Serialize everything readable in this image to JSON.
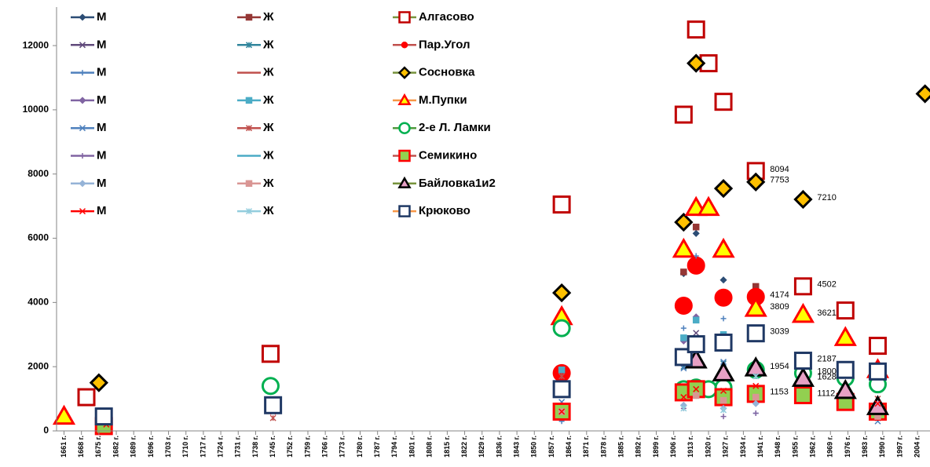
{
  "chart_data": {
    "type": "scatter",
    "xlim": [
      1658,
      2009
    ],
    "xticks": [
      {
        "value": 1661,
        "label": "1661 г."
      },
      {
        "value": 1668,
        "label": "1668 г."
      },
      {
        "value": 1675,
        "label": "1675 г."
      },
      {
        "value": 1682,
        "label": "1682 г."
      },
      {
        "value": 1689,
        "label": "1689 г."
      },
      {
        "value": 1696,
        "label": "1696 г."
      },
      {
        "value": 1703,
        "label": "1703 г."
      },
      {
        "value": 1710,
        "label": "1710 г."
      },
      {
        "value": 1717,
        "label": "1717 г."
      },
      {
        "value": 1724,
        "label": "1724 г."
      },
      {
        "value": 1731,
        "label": "1731 г."
      },
      {
        "value": 1738,
        "label": "1738 г."
      },
      {
        "value": 1745,
        "label": "1745 г."
      },
      {
        "value": 1752,
        "label": "1752 г."
      },
      {
        "value": 1759,
        "label": "1759 г."
      },
      {
        "value": 1766,
        "label": "1766 г."
      },
      {
        "value": 1773,
        "label": "1773 г."
      },
      {
        "value": 1780,
        "label": "1780 г."
      },
      {
        "value": 1787,
        "label": "1787 г."
      },
      {
        "value": 1794,
        "label": "1794 г."
      },
      {
        "value": 1801,
        "label": "1801 г."
      },
      {
        "value": 1808,
        "label": "1808 г."
      },
      {
        "value": 1815,
        "label": "1815 г."
      },
      {
        "value": 1822,
        "label": "1822 г."
      },
      {
        "value": 1829,
        "label": "1829 г."
      },
      {
        "value": 1836,
        "label": "1836 г."
      },
      {
        "value": 1843,
        "label": "1843 г."
      },
      {
        "value": 1850,
        "label": "1850 г."
      },
      {
        "value": 1857,
        "label": "1857 г."
      },
      {
        "value": 1864,
        "label": "1864 г."
      },
      {
        "value": 1871,
        "label": "1871 г."
      },
      {
        "value": 1878,
        "label": "1878 г."
      },
      {
        "value": 1885,
        "label": "1885 г."
      },
      {
        "value": 1892,
        "label": "1892 г."
      },
      {
        "value": 1899,
        "label": "1899 г."
      },
      {
        "value": 1906,
        "label": "1906 г."
      },
      {
        "value": 1913,
        "label": "1913 г."
      },
      {
        "value": 1920,
        "label": "1920 г."
      },
      {
        "value": 1927,
        "label": "1927 г."
      },
      {
        "value": 1934,
        "label": "1934 г."
      },
      {
        "value": 1941,
        "label": "1941 г."
      },
      {
        "value": 1948,
        "label": "1948 г."
      },
      {
        "value": 1955,
        "label": "1955 г."
      },
      {
        "value": 1962,
        "label": "1962 г."
      },
      {
        "value": 1969,
        "label": "1969 г."
      },
      {
        "value": 1976,
        "label": "1976 г."
      },
      {
        "value": 1983,
        "label": "1983 г."
      },
      {
        "value": 1990,
        "label": "1990 г."
      },
      {
        "value": 1997,
        "label": "1997 г."
      },
      {
        "value": 2004,
        "label": "2004 г."
      }
    ],
    "ylim": [
      0,
      13200
    ],
    "yticks": [
      0,
      2000,
      4000,
      6000,
      8000,
      10000,
      12000
    ],
    "series": [
      {
        "name": "М",
        "marker": "diamond",
        "color": "#2c4d75",
        "x": [
          1861,
          1910,
          1915,
          1926,
          1940
        ],
        "values": [
          1850,
          4900,
          6150,
          4700,
          1900
        ]
      },
      {
        "name": "Ж",
        "marker": "square",
        "color": "#953735",
        "x": [
          1861,
          1910,
          1915,
          1939
        ],
        "values": [
          1900,
          4950,
          6350,
          4500
        ]
      },
      {
        "name": "Алгасово",
        "marker": "square",
        "color": "#c00000",
        "fill": "#ffffff",
        "line_color": "#77933c",
        "x": [
          1670,
          1744,
          1861,
          1910,
          1915,
          1920,
          1926,
          1939,
          1958,
          1975,
          1988
        ],
        "values": [
          1050,
          2400,
          7050,
          9850,
          12500,
          11450,
          10250,
          8094,
          4502,
          3750,
          2650
        ],
        "value_labels": [
          null,
          null,
          null,
          null,
          null,
          null,
          null,
          "8094",
          "4502",
          null,
          null
        ]
      },
      {
        "name": "М",
        "marker": "x",
        "color": "#604a7b",
        "x": [
          1910,
          1915,
          1926,
          1988
        ],
        "values": [
          1100,
          3050,
          1500,
          400
        ]
      },
      {
        "name": "Ж",
        "marker": "star",
        "color": "#31859c",
        "x": [
          1861,
          1910,
          1926,
          1939
        ],
        "values": [
          1700,
          2000,
          2100,
          2100
        ]
      },
      {
        "name": "Пар.Угол",
        "marker": "circle",
        "color": "#ff0000",
        "fill": "#ff0000",
        "line_color": "#c0504d",
        "x": [
          1861,
          1910,
          1915,
          1926,
          1939
        ],
        "values": [
          1800,
          3900,
          5150,
          4150,
          4174
        ],
        "value_labels": [
          null,
          null,
          null,
          null,
          "4174"
        ]
      },
      {
        "name": "М",
        "marker": "plus",
        "color": "#4f81bd",
        "x": [
          1861,
          1910,
          1915,
          1926,
          1939
        ],
        "values": [
          300,
          3200,
          5450,
          3500,
          550
        ]
      },
      {
        "name": "Ж",
        "marker": "none",
        "color": "#c0504d",
        "x": [],
        "values": []
      },
      {
        "name": "Сосновка",
        "marker": "diamond",
        "color": "#000000",
        "fill": "#ffc000",
        "line_color": "#77933c",
        "x": [
          1675,
          1861,
          1910,
          1915,
          1926,
          1939,
          1958,
          2007
        ],
        "values": [
          1500,
          4300,
          6500,
          11450,
          7550,
          7753,
          7210,
          10500
        ],
        "value_labels": [
          null,
          null,
          null,
          null,
          null,
          "7753",
          "7210",
          null
        ]
      },
      {
        "name": "М",
        "marker": "diamond",
        "color": "#8064a2",
        "x": [
          1910,
          1915,
          1926
        ],
        "values": [
          2800,
          3550,
          1900
        ]
      },
      {
        "name": "Ж",
        "marker": "square",
        "color": "#4bacc6",
        "x": [
          1861,
          1910,
          1915,
          1926,
          1939
        ],
        "values": [
          1900,
          2900,
          3450,
          3000,
          2050
        ]
      },
      {
        "name": "М.Пупки",
        "marker": "triangle",
        "color": "#ff0000",
        "fill": "#ffff00",
        "line_color": "#f79646",
        "x": [
          1661,
          1861,
          1910,
          1915,
          1920,
          1926,
          1939,
          1958,
          1975,
          1988
        ],
        "values": [
          450,
          3550,
          5650,
          6950,
          6950,
          5650,
          3809,
          3621,
          2900,
          1900
        ],
        "value_labels": [
          null,
          null,
          null,
          null,
          null,
          null,
          "3809",
          "3621",
          null,
          null
        ]
      },
      {
        "name": "М",
        "marker": "x",
        "color": "#4f81bd",
        "x": [
          1861,
          1910,
          1926,
          1939,
          1988
        ],
        "values": [
          900,
          1950,
          2150,
          950,
          300
        ]
      },
      {
        "name": "Ж",
        "marker": "star",
        "color": "#c0504d",
        "x": [
          1745,
          1861,
          1910,
          1926,
          1988
        ],
        "values": [
          400,
          1700,
          1350,
          1250,
          1000
        ]
      },
      {
        "name": "2-е Л. Ламки",
        "marker": "circle",
        "color": "#00b050",
        "fill": "#ffffff",
        "line_color": "#4f9a3c",
        "x": [
          1744,
          1861,
          1910,
          1915,
          1920,
          1926,
          1939,
          1958,
          1975,
          1988
        ],
        "values": [
          1400,
          3200,
          1300,
          1350,
          1300,
          1350,
          1900,
          1800,
          1650,
          1450
        ],
        "value_labels": [
          null,
          null,
          null,
          null,
          null,
          null,
          null,
          "1800",
          null,
          null
        ]
      },
      {
        "name": "М",
        "marker": "plus",
        "color": "#8064a2",
        "x": [
          1910,
          1926,
          1939
        ],
        "values": [
          700,
          450,
          550
        ]
      },
      {
        "name": "Ж",
        "marker": "none",
        "color": "#4bacc6",
        "x": [],
        "values": []
      },
      {
        "name": "Семикино",
        "marker": "square",
        "color": "#ff0000",
        "fill": "#92d050",
        "line_color": "#c0504d",
        "x": [
          1677,
          1861,
          1910,
          1915,
          1926,
          1939,
          1958,
          1975,
          1988
        ],
        "values": [
          150,
          600,
          1200,
          1300,
          1050,
          1153,
          1112,
          900,
          600
        ],
        "value_labels": [
          null,
          null,
          null,
          null,
          null,
          "1153",
          "1112",
          null,
          null
        ]
      },
      {
        "name": "М",
        "marker": "diamond",
        "color": "#95b3d7",
        "x": [
          1910,
          1915,
          1926,
          1939
        ],
        "values": [
          800,
          1100,
          700,
          850
        ]
      },
      {
        "name": "Ж",
        "marker": "square",
        "color": "#d99694",
        "x": [
          1861,
          1915,
          1926,
          1939,
          1988
        ],
        "values": [
          600,
          1100,
          950,
          1050,
          450
        ]
      },
      {
        "name": "Байловка1и2",
        "marker": "triangle",
        "color": "#000000",
        "fill": "#e6a0c4",
        "line_color": "#77933c",
        "x": [
          1915,
          1926,
          1939,
          1958,
          1975,
          1988
        ],
        "values": [
          2200,
          1800,
          1954,
          1628,
          1250,
          750
        ],
        "value_labels": [
          null,
          null,
          "1954",
          "1628",
          null,
          null
        ]
      },
      {
        "name": "М",
        "marker": "x",
        "color": "#ff0000",
        "x": [
          1678,
          1745,
          1861,
          1910,
          1915,
          1926,
          1939,
          1988
        ],
        "values": [
          200,
          600,
          600,
          1050,
          1300,
          1250,
          1400,
          850
        ]
      },
      {
        "name": "Ж",
        "marker": "star",
        "color": "#93cddd",
        "x": [
          1910,
          1926,
          1939
        ],
        "values": [
          700,
          650,
          1700
        ]
      },
      {
        "name": "Крюково",
        "marker": "square",
        "color": "#1f3864",
        "fill": "#ffffff",
        "line_color": "#f79646",
        "x": [
          1677,
          1745,
          1861,
          1910,
          1915,
          1926,
          1939,
          1958,
          1975,
          1988
        ],
        "values": [
          450,
          800,
          1300,
          2300,
          2700,
          2750,
          3039,
          2187,
          1900,
          1850
        ],
        "value_labels": [
          null,
          null,
          null,
          null,
          null,
          null,
          "3039",
          "2187",
          null,
          null
        ]
      }
    ]
  }
}
